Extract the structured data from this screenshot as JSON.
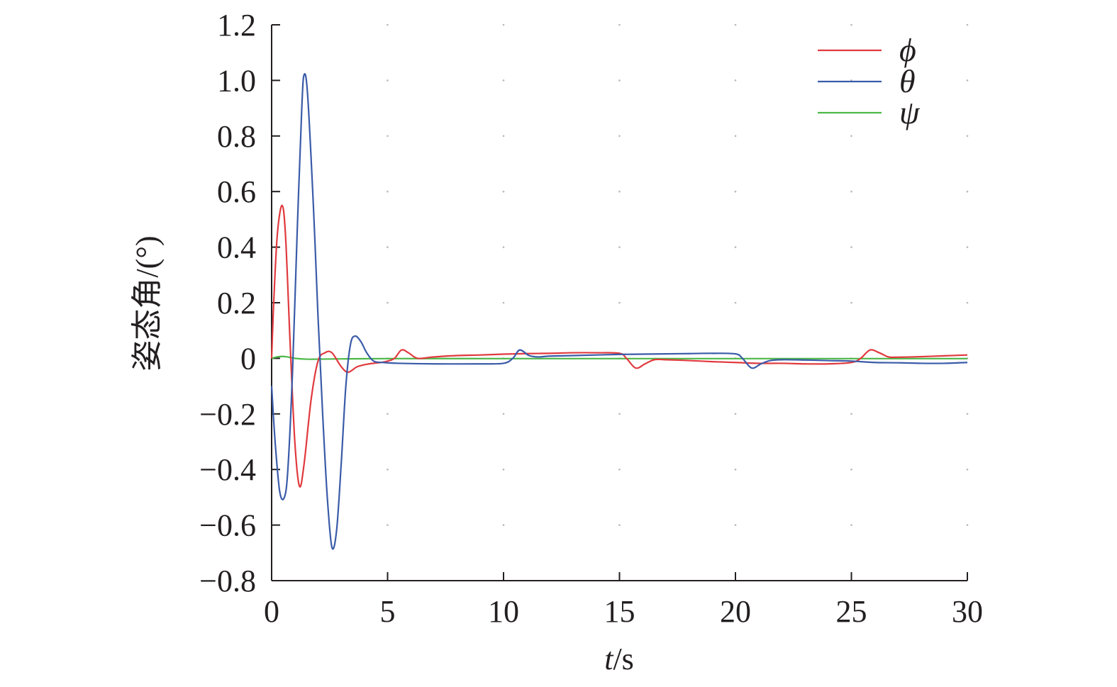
{
  "chart_data": {
    "type": "line",
    "title": "",
    "xlabel_italic": "t",
    "xlabel_rest": "/s",
    "ylabel": "姿态角/(°)",
    "xlim": [
      0,
      30
    ],
    "ylim": [
      -0.8,
      1.2
    ],
    "xticks": [
      0,
      5,
      10,
      15,
      20,
      25,
      30
    ],
    "xtick_labels": [
      "0",
      "5",
      "10",
      "15",
      "20",
      "25",
      "30"
    ],
    "yticks": [
      1.2,
      1.0,
      0.8,
      0.6,
      0.4,
      0.2,
      0,
      -0.2,
      -0.4,
      -0.6,
      -0.8
    ],
    "ytick_labels": [
      "1.2",
      "1.0",
      "0.8",
      "0.6",
      "0.4",
      "0.2",
      "0",
      "−0.2",
      "−0.4",
      "−0.6",
      "−0.8"
    ],
    "grid": "dotted",
    "legend_position": "top-right",
    "series": [
      {
        "name": "ϕ",
        "color": "#e03a3e",
        "points": [
          [
            0,
            0
          ],
          [
            0.1,
            0.22
          ],
          [
            0.25,
            0.45
          ],
          [
            0.45,
            0.55
          ],
          [
            0.6,
            0.44
          ],
          [
            0.8,
            0.05
          ],
          [
            1.0,
            -0.3
          ],
          [
            1.2,
            -0.46
          ],
          [
            1.4,
            -0.38
          ],
          [
            1.7,
            -0.15
          ],
          [
            2.0,
            -0.01
          ],
          [
            2.3,
            0.02
          ],
          [
            2.6,
            0.02
          ],
          [
            3.0,
            -0.03
          ],
          [
            3.3,
            -0.05
          ],
          [
            3.7,
            -0.03
          ],
          [
            4.2,
            -0.02
          ],
          [
            4.7,
            -0.015
          ],
          [
            5.0,
            -0.01
          ],
          [
            5.3,
            0.0
          ],
          [
            5.6,
            0.03
          ],
          [
            5.9,
            0.02
          ],
          [
            6.3,
            0.0
          ],
          [
            7,
            0.005
          ],
          [
            8,
            0.01
          ],
          [
            9,
            0.012
          ],
          [
            10,
            0.015
          ],
          [
            11,
            0.017
          ],
          [
            12,
            0.018
          ],
          [
            13,
            0.02
          ],
          [
            14,
            0.02
          ],
          [
            15,
            0.018
          ],
          [
            15.3,
            0.0
          ],
          [
            15.7,
            -0.035
          ],
          [
            16.1,
            -0.02
          ],
          [
            16.5,
            -0.005
          ],
          [
            17,
            -0.005
          ],
          [
            18,
            -0.008
          ],
          [
            19,
            -0.012
          ],
          [
            20,
            -0.015
          ],
          [
            21,
            -0.018
          ],
          [
            22,
            -0.018
          ],
          [
            23,
            -0.02
          ],
          [
            24,
            -0.02
          ],
          [
            25,
            -0.015
          ],
          [
            25.4,
            0.0
          ],
          [
            25.8,
            0.03
          ],
          [
            26.2,
            0.02
          ],
          [
            26.6,
            0.005
          ],
          [
            27,
            0.004
          ],
          [
            28,
            0.006
          ],
          [
            29,
            0.009
          ],
          [
            30,
            0.012
          ]
        ]
      },
      {
        "name": "θ",
        "color": "#3a5ba8",
        "points": [
          [
            0,
            -0.1
          ],
          [
            0.15,
            -0.3
          ],
          [
            0.35,
            -0.48
          ],
          [
            0.55,
            -0.5
          ],
          [
            0.7,
            -0.4
          ],
          [
            0.9,
            -0.05
          ],
          [
            1.1,
            0.45
          ],
          [
            1.3,
            0.9
          ],
          [
            1.4,
            1.02
          ],
          [
            1.55,
            0.95
          ],
          [
            1.8,
            0.55
          ],
          [
            2.0,
            0.15
          ],
          [
            2.2,
            -0.2
          ],
          [
            2.4,
            -0.5
          ],
          [
            2.6,
            -0.68
          ],
          [
            2.8,
            -0.62
          ],
          [
            3.0,
            -0.38
          ],
          [
            3.2,
            -0.1
          ],
          [
            3.4,
            0.05
          ],
          [
            3.6,
            0.08
          ],
          [
            3.85,
            0.06
          ],
          [
            4.1,
            0.02
          ],
          [
            4.4,
            -0.01
          ],
          [
            4.8,
            -0.015
          ],
          [
            5.5,
            -0.018
          ],
          [
            7,
            -0.02
          ],
          [
            9,
            -0.02
          ],
          [
            10,
            -0.018
          ],
          [
            10.4,
            0.0
          ],
          [
            10.7,
            0.03
          ],
          [
            11.1,
            0.01
          ],
          [
            11.5,
            0.005
          ],
          [
            12,
            0.008
          ],
          [
            13,
            0.01
          ],
          [
            14,
            0.012
          ],
          [
            15,
            0.014
          ],
          [
            16,
            0.015
          ],
          [
            17,
            0.016
          ],
          [
            18,
            0.017
          ],
          [
            19,
            0.018
          ],
          [
            20,
            0.016
          ],
          [
            20.3,
            0.0
          ],
          [
            20.7,
            -0.035
          ],
          [
            21.1,
            -0.02
          ],
          [
            21.5,
            -0.008
          ],
          [
            22,
            -0.005
          ],
          [
            23,
            -0.006
          ],
          [
            24,
            -0.008
          ],
          [
            25,
            -0.01
          ],
          [
            26,
            -0.015
          ],
          [
            27,
            -0.016
          ],
          [
            28,
            -0.018
          ],
          [
            29,
            -0.018
          ],
          [
            30,
            -0.015
          ]
        ]
      },
      {
        "name": "ψ",
        "color": "#4cb848",
        "points": [
          [
            0,
            0
          ],
          [
            0.3,
            0.006
          ],
          [
            0.6,
            0.006
          ],
          [
            1.0,
            0.0
          ],
          [
            1.5,
            -0.003
          ],
          [
            2.0,
            -0.003
          ],
          [
            3.0,
            -0.002
          ],
          [
            5,
            -0.001
          ],
          [
            10,
            -0.001
          ],
          [
            15,
            -0.001
          ],
          [
            20,
            -0.001
          ],
          [
            25,
            -0.001
          ],
          [
            30,
            -0.001
          ]
        ]
      }
    ]
  }
}
